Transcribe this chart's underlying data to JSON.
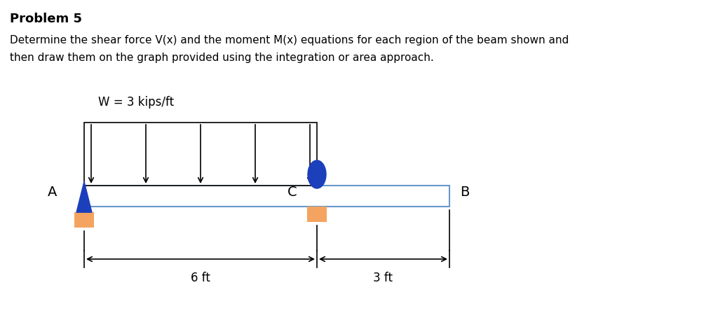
{
  "title": "Problem 5",
  "description_line1": "Determine the shear force V(x) and the moment M(x) equations for each region of the beam shown and",
  "description_line2": "then draw them on the graph provided using the integration or area approach.",
  "load_label": "W = 3 kips/ft",
  "label_A": "A",
  "label_B": "B",
  "label_C": "C",
  "dim_left": "6 ft",
  "dim_right": "3 ft",
  "beam_color": "#FFFFFF",
  "beam_edge_color": "#6699CC",
  "support_color": "#F4A460",
  "triangle_color": "#1C3FBB",
  "circle_color": "#1C3FBB",
  "arrow_color": "#000000",
  "background_color": "#FFFFFF",
  "fig_width": 10.24,
  "fig_height": 4.67
}
